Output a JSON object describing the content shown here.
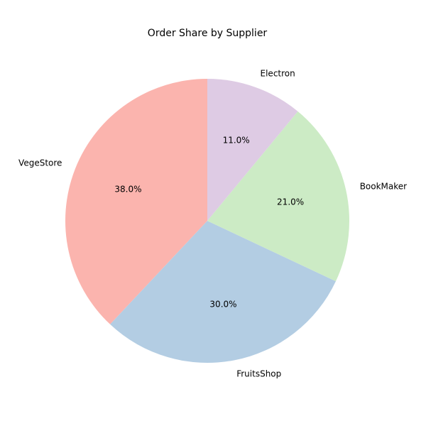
{
  "chart_data": {
    "type": "pie",
    "title": "Order Share by Supplier",
    "categories": [
      "VegeStore",
      "FruitsShop",
      "BookMaker",
      "Electron"
    ],
    "values": [
      38.0,
      30.0,
      21.0,
      11.0
    ],
    "value_labels": [
      "38.0%",
      "30.0%",
      "21.0%",
      "11.0%"
    ],
    "colors": [
      "#fbb4ae",
      "#b3cde3",
      "#ccebc5",
      "#decbe4"
    ],
    "start_angle_deg": 90,
    "direction": "counterclockwise",
    "legend": "none"
  }
}
